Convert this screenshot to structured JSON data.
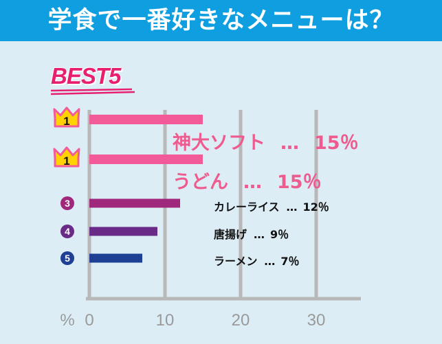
{
  "header": {
    "title": "学食で一番好きなメニューは？"
  },
  "badge": {
    "text": "BEST5"
  },
  "ranks": [
    "1",
    "1",
    "3",
    "4",
    "5"
  ],
  "colors": {
    "header_bg": "#0f9fe0",
    "background": "#dcedf5",
    "grid": "#b8b8b8",
    "crown": "#ffd200",
    "pink": "#f25b98",
    "magenta": "#a0287c",
    "purple": "#6a2a88",
    "navy": "#1d3f94"
  },
  "chart_data": {
    "type": "bar",
    "orientation": "horizontal",
    "categories": [
      "神大ソフト",
      "うどん",
      "カレーライス",
      "唐揚げ",
      "ラーメン"
    ],
    "values": [
      15,
      15,
      12,
      9,
      7
    ],
    "value_labels": [
      "15％",
      "15％",
      "12％",
      "9％",
      "7％"
    ],
    "separator": "…",
    "x_ticks": [
      "0",
      "10",
      "20",
      "30"
    ],
    "xlim": [
      0,
      36
    ],
    "unit_label": "%",
    "grid": true,
    "bar_colors": [
      "#f25b98",
      "#f25b98",
      "#a0287c",
      "#6a2a88",
      "#1d3f94"
    ]
  }
}
